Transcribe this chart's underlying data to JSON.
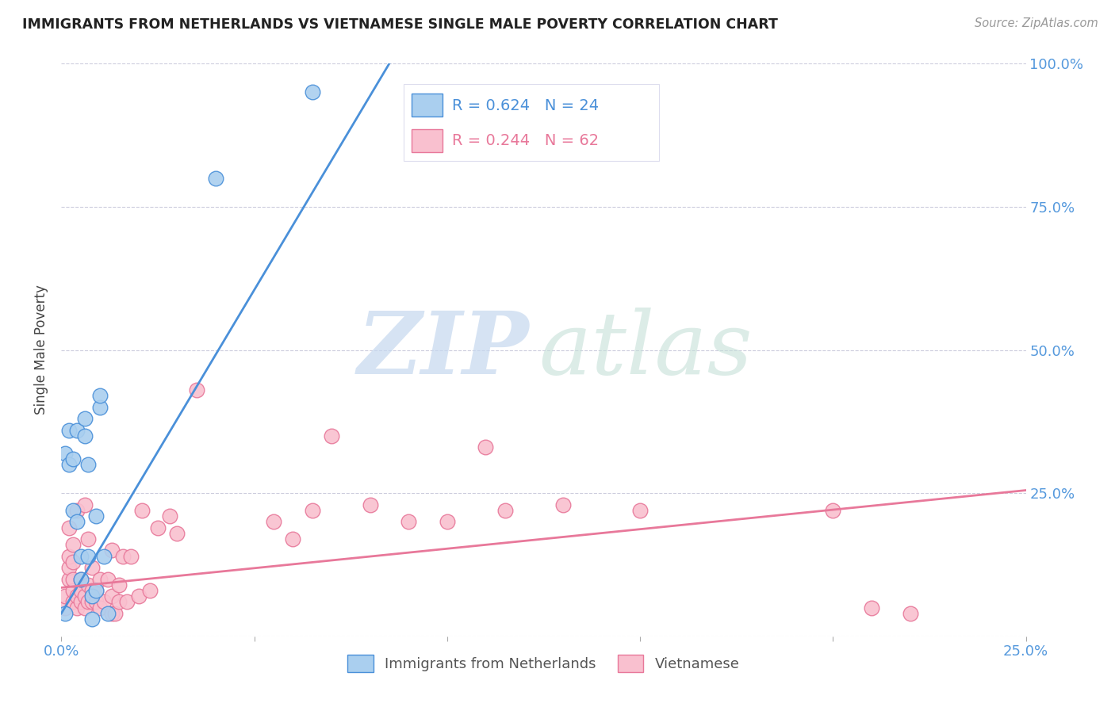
{
  "title": "IMMIGRANTS FROM NETHERLANDS VS VIETNAMESE SINGLE MALE POVERTY CORRELATION CHART",
  "source": "Source: ZipAtlas.com",
  "xlabel": "",
  "ylabel": "Single Male Poverty",
  "xlim": [
    0.0,
    0.25
  ],
  "ylim": [
    0.0,
    1.0
  ],
  "xticks": [
    0.0,
    0.05,
    0.1,
    0.15,
    0.2,
    0.25
  ],
  "yticks": [
    0.0,
    0.25,
    0.5,
    0.75,
    1.0
  ],
  "xticklabels": [
    "0.0%",
    "",
    "",
    "",
    "",
    "25.0%"
  ],
  "yticklabels_right": [
    "",
    "25.0%",
    "50.0%",
    "75.0%",
    "100.0%"
  ],
  "legend_label1": "Immigrants from Netherlands",
  "legend_label2": "Vietnamese",
  "R1": 0.624,
  "N1": 24,
  "R2": 0.244,
  "N2": 62,
  "color1": "#aacfef",
  "color2": "#f9c0cf",
  "line_color1": "#4a90d9",
  "line_color2": "#e8789a",
  "watermark_zip": "ZIP",
  "watermark_atlas": "atlas",
  "netherlands_x": [
    0.001,
    0.001,
    0.002,
    0.002,
    0.003,
    0.003,
    0.004,
    0.004,
    0.005,
    0.005,
    0.006,
    0.006,
    0.007,
    0.007,
    0.008,
    0.008,
    0.009,
    0.009,
    0.01,
    0.01,
    0.011,
    0.012,
    0.04,
    0.065
  ],
  "netherlands_y": [
    0.04,
    0.32,
    0.3,
    0.36,
    0.31,
    0.22,
    0.2,
    0.36,
    0.1,
    0.14,
    0.35,
    0.38,
    0.3,
    0.14,
    0.03,
    0.07,
    0.08,
    0.21,
    0.4,
    0.42,
    0.14,
    0.04,
    0.8,
    0.95
  ],
  "vietnamese_x": [
    0.001,
    0.001,
    0.002,
    0.002,
    0.002,
    0.002,
    0.003,
    0.003,
    0.003,
    0.003,
    0.003,
    0.004,
    0.004,
    0.004,
    0.005,
    0.005,
    0.005,
    0.006,
    0.006,
    0.006,
    0.007,
    0.007,
    0.007,
    0.008,
    0.008,
    0.008,
    0.009,
    0.009,
    0.01,
    0.01,
    0.011,
    0.012,
    0.013,
    0.013,
    0.013,
    0.014,
    0.015,
    0.015,
    0.016,
    0.017,
    0.018,
    0.02,
    0.021,
    0.023,
    0.025,
    0.028,
    0.03,
    0.035,
    0.055,
    0.06,
    0.065,
    0.07,
    0.08,
    0.09,
    0.1,
    0.11,
    0.115,
    0.13,
    0.15,
    0.2,
    0.21,
    0.22
  ],
  "vietnamese_y": [
    0.05,
    0.07,
    0.1,
    0.12,
    0.14,
    0.19,
    0.06,
    0.08,
    0.1,
    0.13,
    0.16,
    0.05,
    0.07,
    0.22,
    0.06,
    0.08,
    0.1,
    0.05,
    0.07,
    0.23,
    0.06,
    0.09,
    0.17,
    0.06,
    0.08,
    0.12,
    0.06,
    0.08,
    0.05,
    0.1,
    0.06,
    0.1,
    0.04,
    0.07,
    0.15,
    0.04,
    0.06,
    0.09,
    0.14,
    0.06,
    0.14,
    0.07,
    0.22,
    0.08,
    0.19,
    0.21,
    0.18,
    0.43,
    0.2,
    0.17,
    0.22,
    0.35,
    0.23,
    0.2,
    0.2,
    0.33,
    0.22,
    0.23,
    0.22,
    0.22,
    0.05,
    0.04
  ],
  "reg_line1_x": [
    0.0,
    0.085
  ],
  "reg_line1_y": [
    0.04,
    1.0
  ],
  "reg_line2_x": [
    0.0,
    0.25
  ],
  "reg_line2_y": [
    0.085,
    0.255
  ]
}
